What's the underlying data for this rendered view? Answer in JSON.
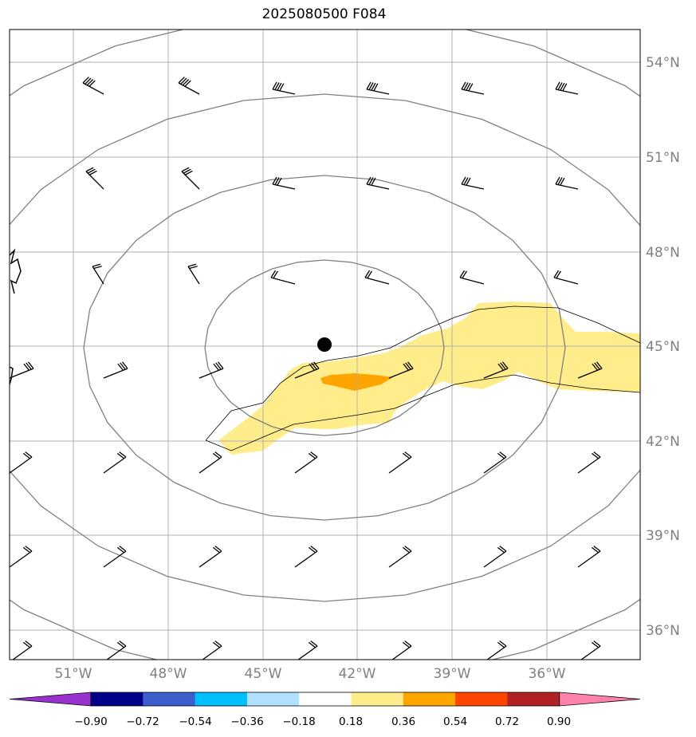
{
  "title": "2025080500 F084",
  "latitude_labels": [
    "54°N",
    "51°N",
    "48°N",
    "45°N",
    "42°N",
    "39°N",
    "36°N"
  ],
  "longitude_labels": [
    "51°W",
    "48°W",
    "45°W",
    "42°W",
    "39°W",
    "36°W"
  ],
  "colorbar": {
    "tick_labels": [
      "−0.90",
      "−0.72",
      "−0.54",
      "−0.36",
      "−0.18",
      "0.18",
      "0.36",
      "0.54",
      "0.72",
      "0.90"
    ],
    "colors": [
      "#9932cc",
      "#00008b",
      "#3a5fcd",
      "#00bfff",
      "#b0e2ff",
      "#ffffff",
      "#ffec8b",
      "#ffa500",
      "#ff4500",
      "#b22222",
      "#ff82ab"
    ]
  },
  "map": {
    "center_marker": {
      "lat": 45.0,
      "lon": -43.0
    },
    "field_colors": {
      "weak_positive": "#ffec8b",
      "moderate_positive": "#ffa500"
    }
  }
}
